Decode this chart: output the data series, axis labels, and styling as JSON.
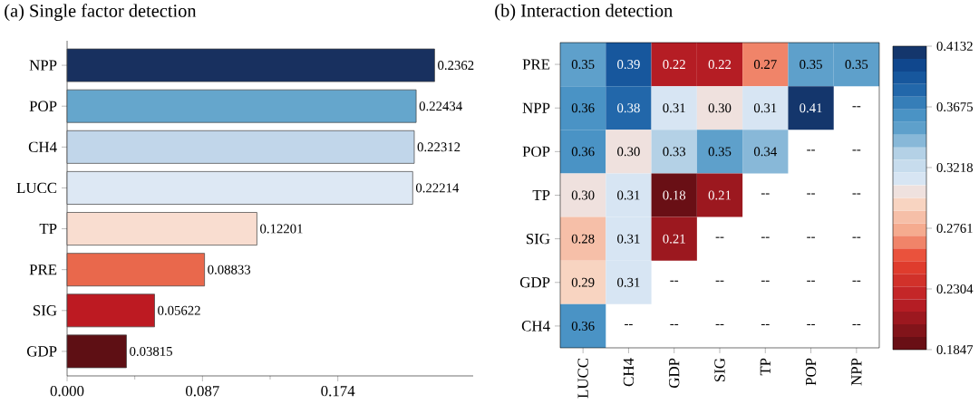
{
  "chart_data": [
    {
      "type": "bar",
      "title": "(a) Single factor detection",
      "orientation": "horizontal",
      "categories": [
        "NPP",
        "POP",
        "CH4",
        "LUCC",
        "TP",
        "PRE",
        "SIG",
        "GDP"
      ],
      "values": [
        0.2362,
        0.22434,
        0.22312,
        0.22214,
        0.12201,
        0.08833,
        0.05622,
        0.03815
      ],
      "colors": [
        "#18305f",
        "#65a6cc",
        "#c1d6ea",
        "#dde8f4",
        "#f9ddd0",
        "#e9684c",
        "#bd1a22",
        "#5e0f14"
      ],
      "xlim": [
        0,
        0.261
      ],
      "xticks": [
        {
          "value": 0,
          "label": "0.000"
        },
        0.087,
        0.174
      ],
      "data_labels": true
    },
    {
      "type": "heatmap",
      "title": "(b) Interaction detection",
      "categories": [
        "LUCC",
        "CH4",
        "GDP",
        "SIG",
        "TP",
        "POP",
        "NPP"
      ],
      "y_categories": [
        "PRE",
        "NPP",
        "POP",
        "TP",
        "SIG",
        "GDP",
        "CH4"
      ],
      "cells": [
        [
          0.35,
          0.39,
          0.22,
          0.22,
          0.27,
          0.35,
          0.35
        ],
        [
          0.36,
          0.38,
          0.31,
          0.3,
          0.31,
          0.41,
          null
        ],
        [
          0.36,
          0.3,
          0.33,
          0.35,
          0.34,
          null,
          null
        ],
        [
          0.3,
          0.31,
          0.1847,
          0.21,
          null,
          null,
          null
        ],
        [
          0.28,
          0.31,
          0.21,
          null,
          null,
          null,
          null
        ],
        [
          0.29,
          0.31,
          null,
          null,
          null,
          null,
          null
        ],
        [
          0.36,
          null,
          null,
          null,
          null,
          null,
          null
        ]
      ],
      "cell_labels": [
        [
          "0.35",
          "0.39",
          "0.22",
          "0.22",
          "0.27",
          "0.35",
          "0.35"
        ],
        [
          "0.36",
          "0.38",
          "0.31",
          "0.30",
          "0.31",
          "0.41",
          "--"
        ],
        [
          "0.36",
          "0.30",
          "0.33",
          "0.35",
          "0.34",
          "--",
          "--"
        ],
        [
          "0.30",
          "0.31",
          "0.18",
          "0.21",
          "--",
          "--",
          "--"
        ],
        [
          "0.28",
          "0.31",
          "0.21",
          "--",
          "--",
          "--",
          "--"
        ],
        [
          "0.29",
          "0.31",
          "--",
          "--",
          "--",
          "--",
          "--"
        ],
        [
          "0.36",
          "--",
          "--",
          "--",
          "--",
          "--",
          "--"
        ]
      ],
      "clim": [
        0.1847,
        0.4132
      ],
      "cticks": [
        0.1847,
        0.2304,
        0.2761,
        0.3218,
        0.3675,
        0.4132
      ]
    }
  ]
}
